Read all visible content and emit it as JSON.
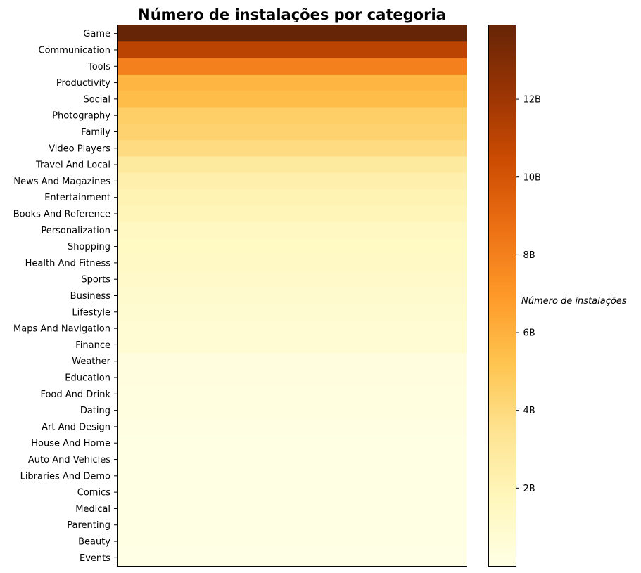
{
  "chart_data": {
    "type": "heatmap",
    "title": "Número de instalações por categoria",
    "colorbar_label": "Número de instalações",
    "colormap": "YlOrBr",
    "categories": [
      "Game",
      "Communication",
      "Tools",
      "Productivity",
      "Social",
      "Photography",
      "Family",
      "Video Players",
      "Travel And Local",
      "News And Magazines",
      "Entertainment",
      "Books And Reference",
      "Personalization",
      "Shopping",
      "Health And Fitness",
      "Sports",
      "Business",
      "Lifestyle",
      "Maps And Navigation",
      "Finance",
      "Weather",
      "Education",
      "Food And Drink",
      "Dating",
      "Art And Design",
      "House And Home",
      "Auto And Vehicles",
      "Libraries And Demo",
      "Comics",
      "Medical",
      "Parenting",
      "Beauty",
      "Events"
    ],
    "values": [
      13900000000,
      11000000000,
      8000000000,
      5800000000,
      5500000000,
      4600000000,
      4400000000,
      3900000000,
      2900000000,
      2400000000,
      2100000000,
      1900000000,
      1500000000,
      1400000000,
      1300000000,
      1200000000,
      1000000000,
      900000000,
      800000000,
      770000000,
      360000000,
      350000000,
      270000000,
      260000000,
      125000000,
      100000000,
      50000000,
      60000000,
      57000000,
      50000000,
      30000000,
      27000000,
      16000000
    ],
    "colorbar_range": [
      0,
      13900000000
    ],
    "colorbar_ticks": [
      2000000000,
      4000000000,
      6000000000,
      8000000000,
      10000000000,
      12000000000
    ],
    "colorbar_tick_labels": [
      "2B",
      "4B",
      "6B",
      "8B",
      "10B",
      "12B"
    ],
    "grid": false
  }
}
